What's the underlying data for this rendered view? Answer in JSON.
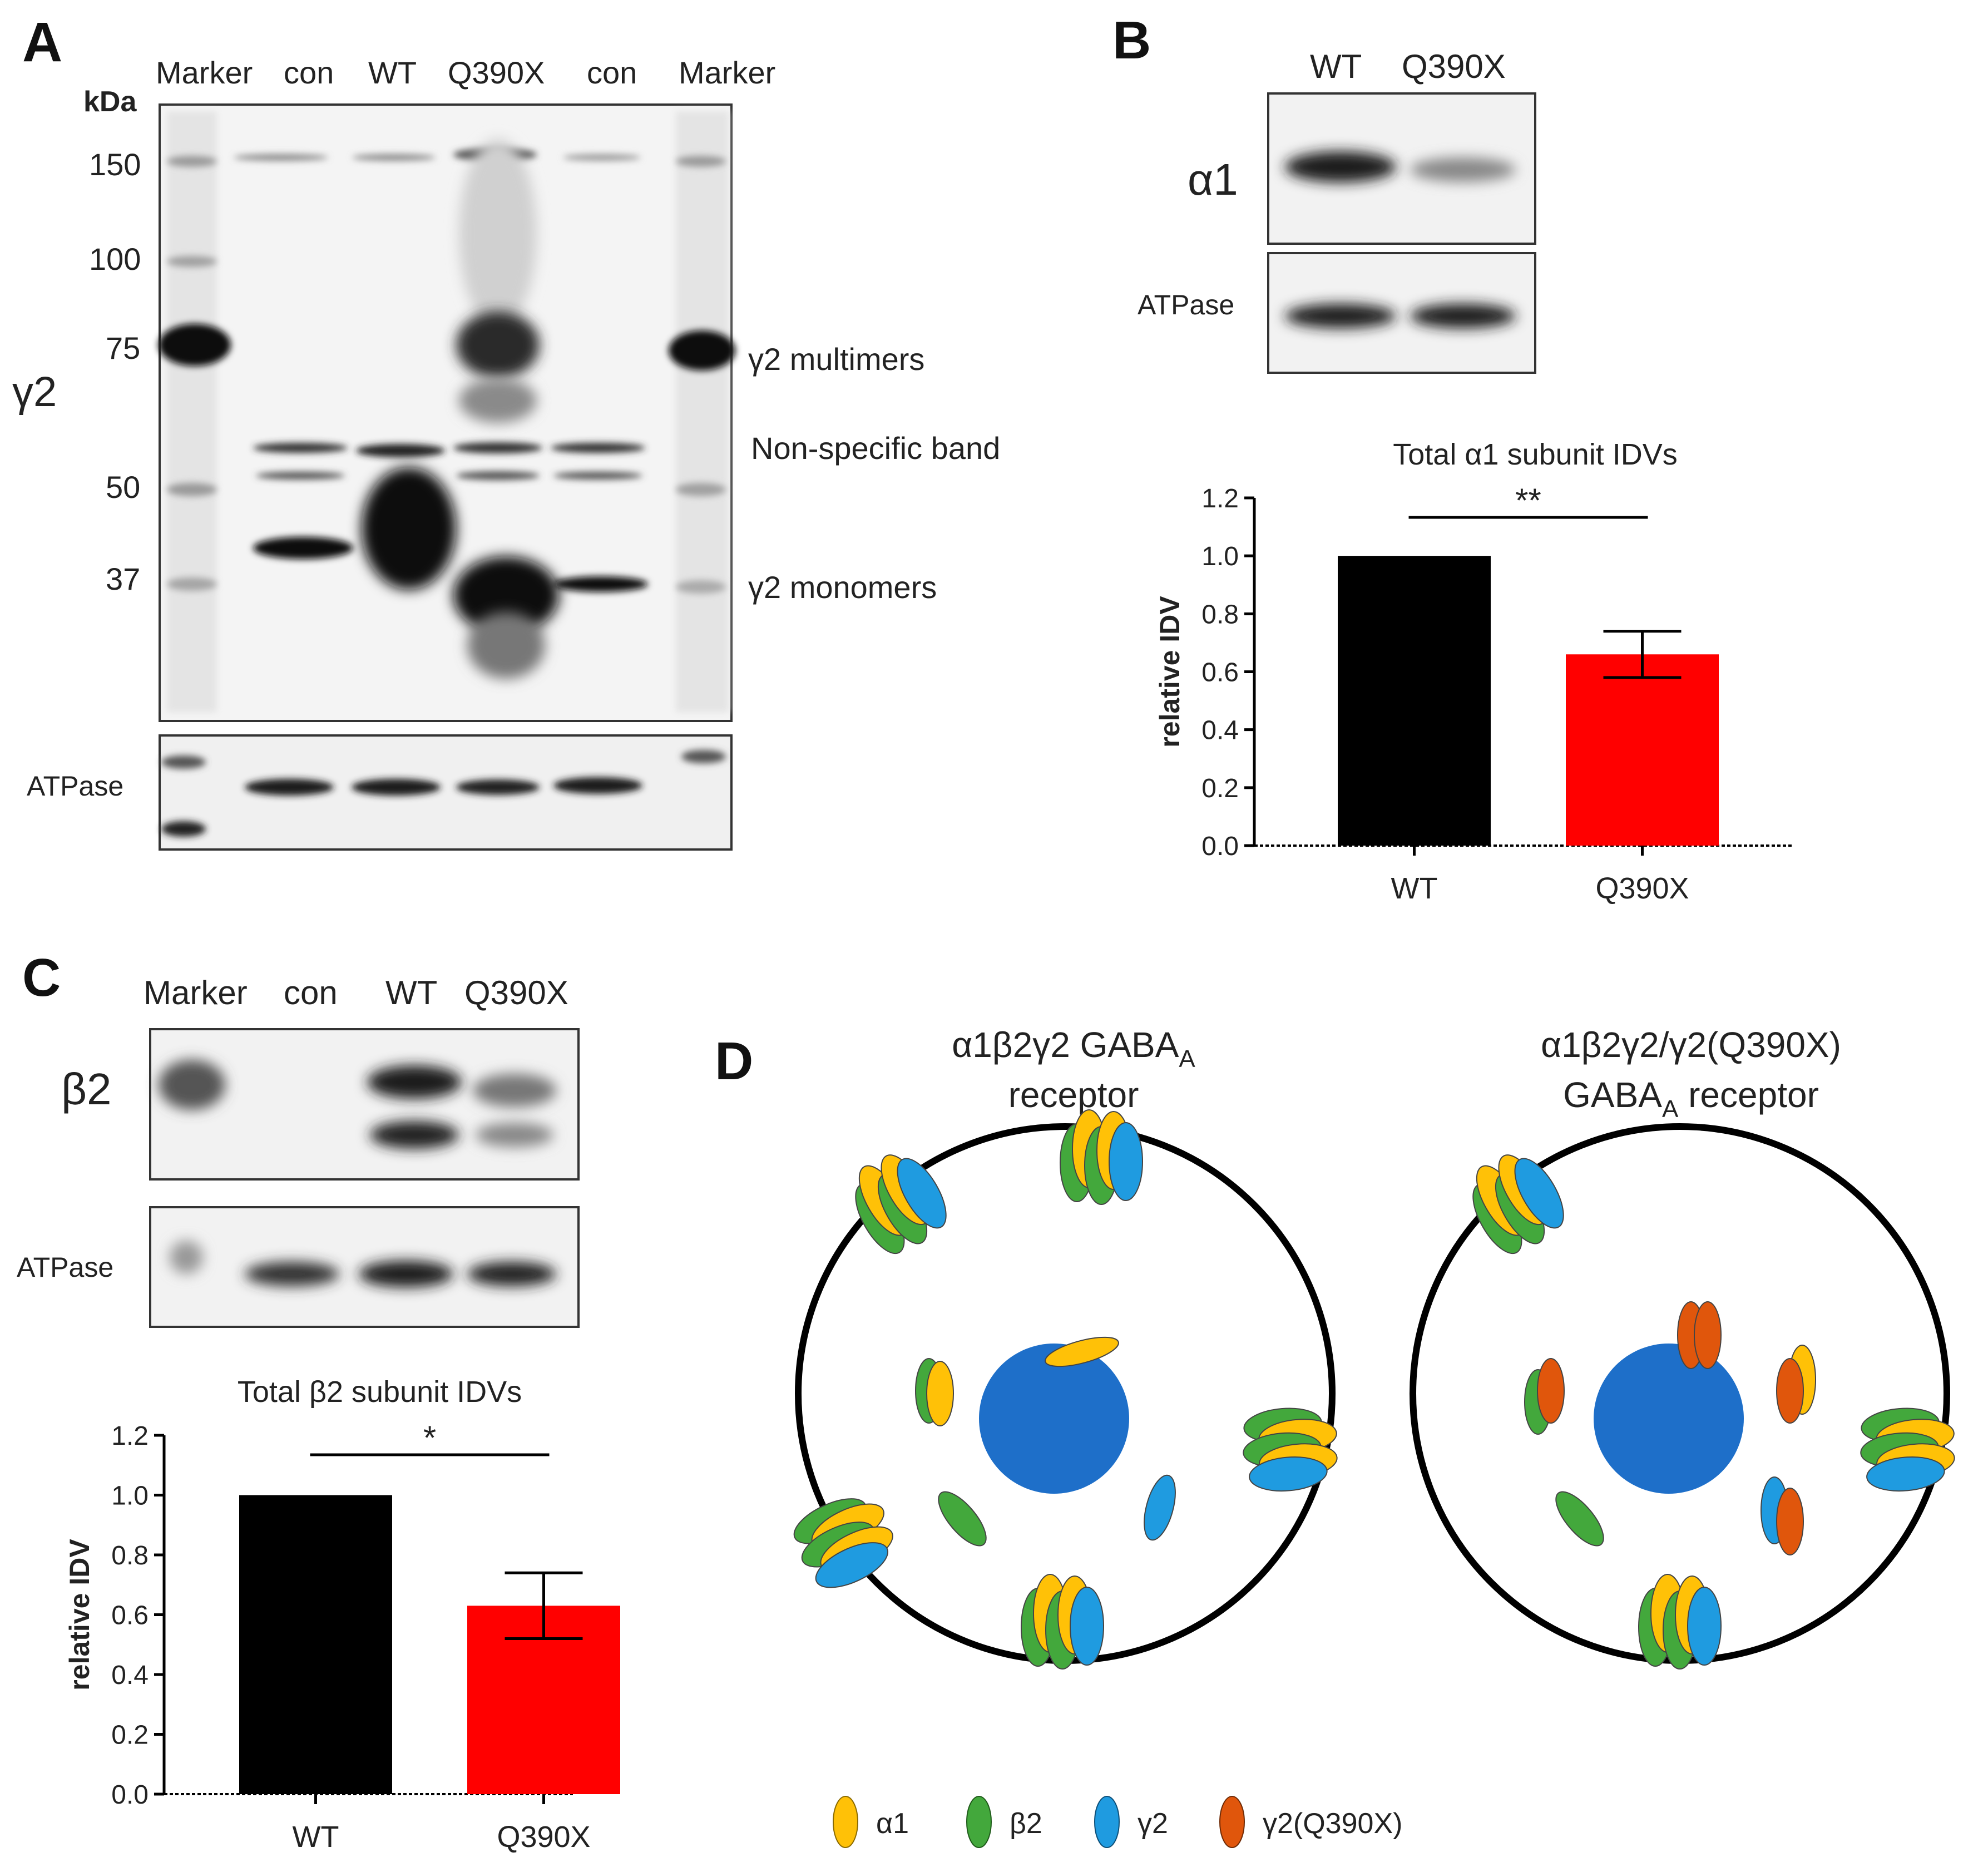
{
  "colors": {
    "wt_bar": "#000000",
    "mut_bar": "#ff0000",
    "alpha1": "#ffc107",
    "beta2": "#43a83c",
    "gamma2": "#1f9be0",
    "gamma2_mut": "#e0560c",
    "nucleus": "#1e6fc9"
  },
  "panelA": {
    "letter": "A",
    "lane_labels": [
      "Marker",
      "con",
      "WT",
      "Q390X",
      "con",
      "Marker"
    ],
    "kda_label": "kDa",
    "mw_ticks": [
      "150",
      "100",
      "75",
      "50",
      "37"
    ],
    "blot_label": "γ2",
    "band_labels": [
      "γ2 multimers",
      "Non-specific band",
      "γ2 monomers"
    ],
    "loading_label": "ATPase"
  },
  "panelB": {
    "letter": "B",
    "lane_labels": [
      "WT",
      "Q390X"
    ],
    "blot_label": "α1",
    "loading_label": "ATPase"
  },
  "panelC": {
    "letter": "C",
    "lane_labels": [
      "Marker",
      "con",
      "WT",
      "Q390X"
    ],
    "blot_label": "β2",
    "loading_label": "ATPase"
  },
  "panelD": {
    "letter": "D",
    "left_title_1": "α1β2γ2 GABA",
    "left_title_sub": "A",
    "left_title_2": "receptor",
    "right_title_1": "α1β2γ2/γ2(Q390X)",
    "right_title_2": "GABA",
    "right_title_sub": "A",
    "right_title_3": " receptor",
    "legend": [
      {
        "name": "α1",
        "color": "#ffc107"
      },
      {
        "name": "β2",
        "color": "#43a83c"
      },
      {
        "name": "γ2",
        "color": "#1f9be0"
      },
      {
        "name": "γ2(Q390X)",
        "color": "#e0560c"
      }
    ]
  },
  "chart_data": [
    {
      "type": "bar",
      "title": "Total α1 subunit IDVs",
      "categories": [
        "WT",
        "Q390X"
      ],
      "values": [
        1.0,
        0.66
      ],
      "errors": [
        0,
        0.08
      ],
      "ylabel": "relative IDV",
      "xlabel": "",
      "ylim": [
        0,
        1.2
      ],
      "yticks": [
        "0.0",
        "0.2",
        "0.4",
        "0.6",
        "0.8",
        "1.0",
        "1.2"
      ],
      "significance": "**"
    },
    {
      "type": "bar",
      "title": "Total β2 subunit IDVs",
      "categories": [
        "WT",
        "Q390X"
      ],
      "values": [
        1.0,
        0.63
      ],
      "errors": [
        0,
        0.11
      ],
      "ylabel": "relative IDV",
      "xlabel": "",
      "ylim": [
        0,
        1.2
      ],
      "yticks": [
        "0.0",
        "0.2",
        "0.4",
        "0.6",
        "0.8",
        "1.0",
        "1.2"
      ],
      "significance": "*"
    }
  ]
}
